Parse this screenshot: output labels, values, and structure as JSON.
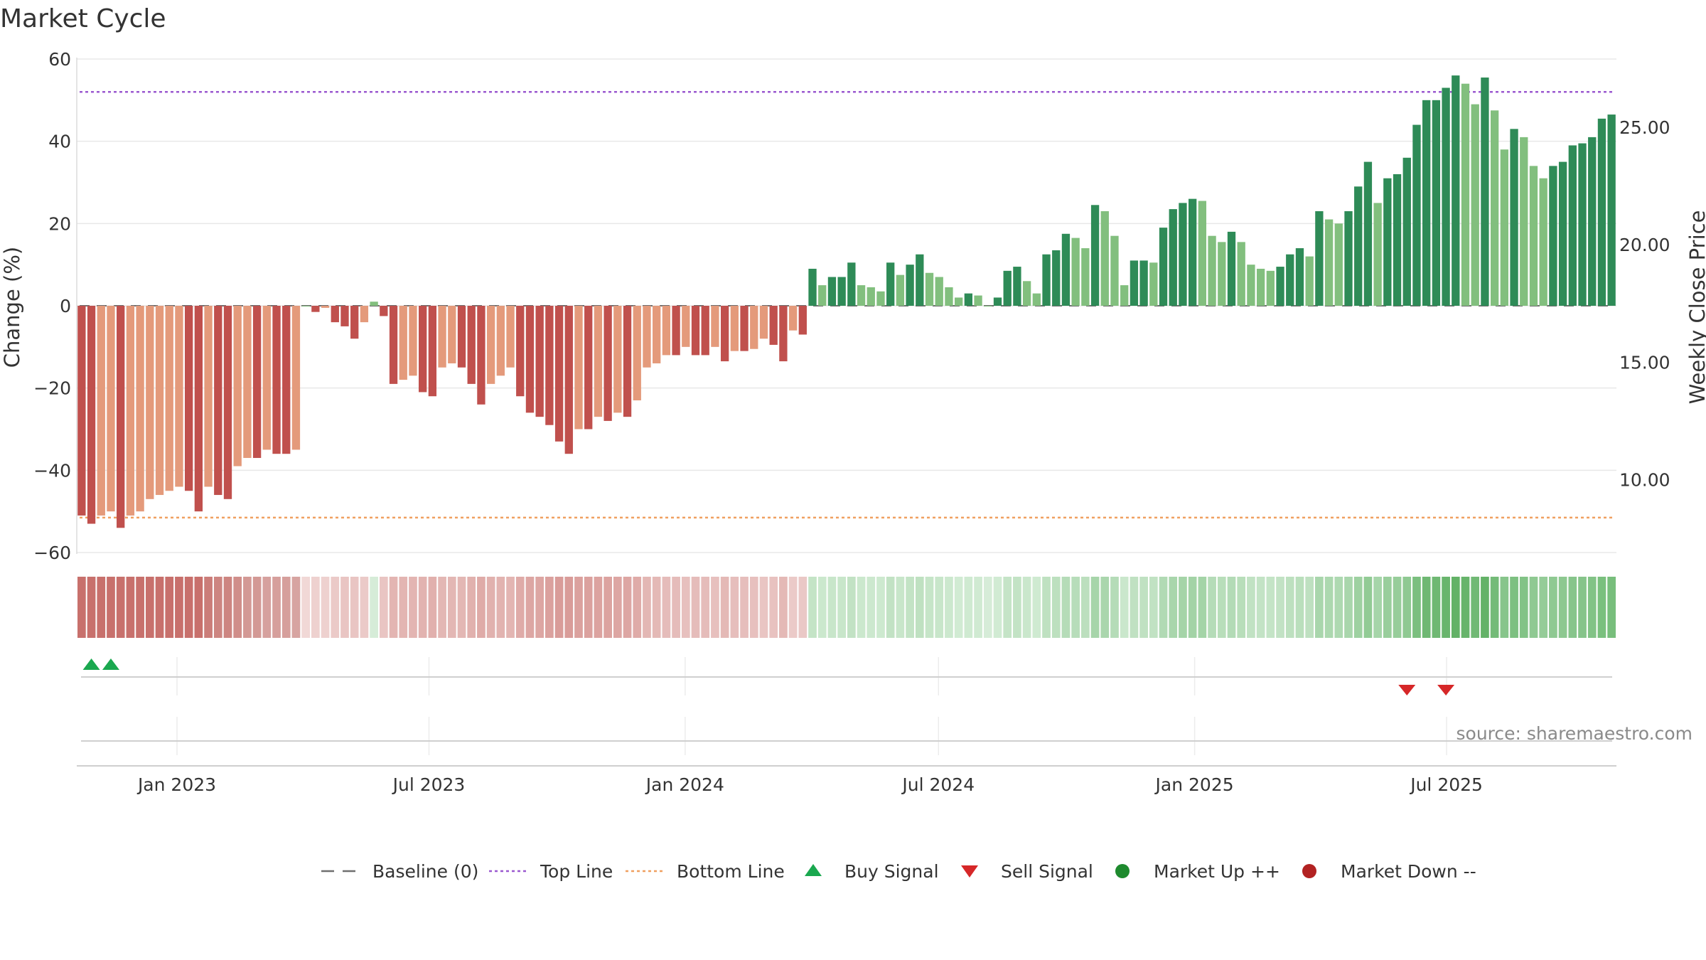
{
  "chart_data": {
    "type": "bar",
    "title": "Market Cycle",
    "ylabel": "Change (%)",
    "y2label": "Weekly Close Price",
    "ylim": [
      -60,
      60
    ],
    "yticks": [
      "60",
      "40",
      "20",
      "0",
      "−20",
      "−40",
      "−60"
    ],
    "y2ticks": [
      "25.00",
      "20.00",
      "15.00",
      "10.00"
    ],
    "y2_values": [
      25,
      20,
      15,
      10
    ],
    "y2lim": [
      6.9,
      27.9
    ],
    "start_date": "2022-10-21",
    "week_step_days": 7,
    "xticks": [
      {
        "label": "Jan 2023",
        "date": "2023-01-01"
      },
      {
        "label": "Jul 2023",
        "date": "2023-07-01"
      },
      {
        "label": "Jan 2024",
        "date": "2024-01-01"
      },
      {
        "label": "Jul 2024",
        "date": "2024-07-01"
      },
      {
        "label": "Jan 2025",
        "date": "2025-01-01"
      },
      {
        "label": "Jul 2025",
        "date": "2025-07-01"
      }
    ],
    "top_line": 52,
    "bottom_line": -51.5,
    "baseline": 0,
    "series": [
      {
        "name": "Change",
        "values": [
          -51,
          -53,
          -51,
          -50,
          -54,
          -51,
          -50,
          -47,
          -46,
          -45,
          -44,
          -45,
          -50,
          -44,
          -46,
          -47,
          -39,
          -37,
          -37,
          -35,
          -36,
          -36,
          -35,
          0,
          -1.5,
          -0.5,
          -4,
          -5,
          -8,
          -4,
          1,
          -2.5,
          -19,
          -18,
          -17,
          -21,
          -22,
          -15,
          -14,
          -15,
          -19,
          -24,
          -19,
          -17,
          -15,
          -22,
          -26,
          -27,
          -29,
          -33,
          -36,
          -30,
          -30,
          -27,
          -28,
          -26,
          -27,
          -23,
          -15,
          -14,
          -12,
          -12,
          -10,
          -12,
          -12,
          -10,
          -13.5,
          -11,
          -11,
          -10.5,
          -8,
          -9.5,
          -13.5,
          -6,
          -7,
          9,
          5,
          7,
          7,
          10.5,
          5,
          4.5,
          3.5,
          10.5,
          7.5,
          10,
          12.5,
          8,
          7,
          4.5,
          2,
          3,
          2.5,
          0,
          2,
          8.5,
          9.5,
          6,
          3,
          12.5,
          13.5,
          17.5,
          16.5,
          14,
          24.5,
          23,
          17,
          5,
          11,
          11,
          10.5,
          19,
          23.5,
          25,
          26,
          25.5,
          17,
          15.5,
          18,
          15.5,
          10,
          9,
          8.5,
          9.5,
          12.5,
          14,
          12,
          23,
          21,
          20,
          23,
          29,
          35,
          25,
          31,
          32,
          36,
          44,
          50,
          50,
          53,
          56,
          54,
          49,
          55.5,
          47.5,
          38,
          43,
          41,
          34,
          31,
          34,
          35,
          39,
          39.5,
          41,
          45.5,
          46.5
        ]
      }
    ],
    "cycle_colors": [
      "#c0504d",
      "#e49a7b",
      "#2e8b57",
      "#82bf7e"
    ],
    "strip_colors": [
      "#c8706c",
      "#c8706c",
      "#c8706c",
      "#c8706c",
      "#c8706c",
      "#c8706c",
      "#c8706c",
      "#c8706c",
      "#c8706c",
      "#c8706c",
      "#c8706c",
      "#c8706c",
      "#c8706c",
      "#cb7d79",
      "#cd8581",
      "#cd8581",
      "#d08e8a",
      "#d39995",
      "#d39995",
      "#d6a19e",
      "#d69f9c",
      "#d69f9c",
      "#d7a4a1",
      "#f1d8d6",
      "#eed1cf",
      "#eed1cf",
      "#ebcac8",
      "#e9c5c3",
      "#e9c5c3",
      "#ebcac8",
      "#d6ecd8",
      "#e9c5c3",
      "#e3b5b2",
      "#e3b5b2",
      "#e3b5b2",
      "#e2b3b0",
      "#e1b0ad",
      "#e3b7b4",
      "#e3b7b4",
      "#e3b7b4",
      "#e1b1ae",
      "#dfaba8",
      "#e1b1ae",
      "#e2b3b0",
      "#e3b5b2",
      "#dfaba8",
      "#dda6a3",
      "#dda6a3",
      "#dba19e",
      "#d99c99",
      "#d99c99",
      "#dba19e",
      "#dba19e",
      "#dca3a0",
      "#dca3a0",
      "#dda6a3",
      "#dda6a3",
      "#dfaba8",
      "#e3b7b4",
      "#e4b9b6",
      "#e5bcba",
      "#e5bcba",
      "#e7c0be",
      "#e5bcba",
      "#e5bcba",
      "#e7c0be",
      "#e4b9b6",
      "#e6bebc",
      "#e6bebc",
      "#e7c0be",
      "#e9c5c3",
      "#e8c2c0",
      "#e4b9b6",
      "#ebcac8",
      "#eac8c6",
      "#c4e4c6",
      "#cbe8cd",
      "#c8e6ca",
      "#c8e6ca",
      "#c2e2c4",
      "#cbe8cd",
      "#cce8ce",
      "#cde9cf",
      "#c2e2c4",
      "#c8e6ca",
      "#c3e3c5",
      "#bfe1c1",
      "#c6e5c8",
      "#c8e6ca",
      "#cce8ce",
      "#d1ebd3",
      "#cfead1",
      "#d0ead2",
      "#d6ecd8",
      "#d1ebd3",
      "#c5e4c7",
      "#c3e3c5",
      "#cae7cc",
      "#cfead1",
      "#bfe1c1",
      "#bde0bf",
      "#b5dcb8",
      "#b7ddba",
      "#bcdfbe",
      "#a7d5aa",
      "#aad6ad",
      "#b5dcb8",
      "#cae7cc",
      "#c0e1c2",
      "#c0e1c2",
      "#c1e2c3",
      "#b1dab4",
      "#a9d6ac",
      "#a5d4a8",
      "#a3d3a6",
      "#a4d4a7",
      "#b5dcb8",
      "#b8deba",
      "#b3dbb6",
      "#b8deba",
      "#c1e2c3",
      "#c3e3c5",
      "#c4e4c6",
      "#c2e2c4",
      "#bde0bf",
      "#badfbc",
      "#bee0c0",
      "#a9d6ac",
      "#acd8af",
      "#aed9b1",
      "#a9d6ac",
      "#9ed1a1",
      "#92cb95",
      "#a6d5a9",
      "#99ce9c",
      "#97cd9a",
      "#8fc992",
      "#7bbf7f",
      "#6fb873",
      "#6fb873",
      "#69b56d",
      "#63b267",
      "#67b46b",
      "#71b975",
      "#64b268",
      "#74bb78",
      "#87c58b",
      "#7dc081",
      "#82c386",
      "#8fc992",
      "#95cc98",
      "#8fc992",
      "#8dc890",
      "#87c58b",
      "#86c48a",
      "#82c386",
      "#7ac07e",
      "#78be7c"
    ],
    "buy_signals": [
      "2022-10-28",
      "2022-11-11"
    ],
    "sell_signals": [
      "2025-05-30",
      "2025-06-27"
    ],
    "source": "source: sharemaestro.com",
    "legend": [
      {
        "key": "baseline",
        "label": "Baseline (0)"
      },
      {
        "key": "top",
        "label": "Top Line"
      },
      {
        "key": "bottom",
        "label": "Bottom Line"
      },
      {
        "key": "buy",
        "label": "Buy Signal"
      },
      {
        "key": "sell",
        "label": "Sell Signal"
      },
      {
        "key": "up",
        "label": "Market Up ++"
      },
      {
        "key": "down",
        "label": "Market Down --"
      }
    ],
    "legend_colors": {
      "baseline": "#6f6f6f",
      "top": "#9b59d0",
      "bottom": "#f0a060",
      "buy": "#1aa84f",
      "sell": "#d62728",
      "up": "#1e8a2e",
      "down": "#b22222"
    }
  }
}
